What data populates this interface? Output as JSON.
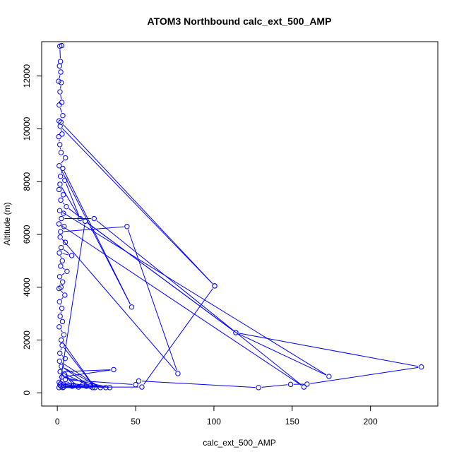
{
  "chart_data": {
    "type": "line",
    "title": "ATOM3 Northbound calc_ext_500_AMP",
    "xlabel": "calc_ext_500_AMP",
    "ylabel": "Altitude (m)",
    "xlim": [
      -10,
      243
    ],
    "ylim": [
      -500,
      13300
    ],
    "x_ticks": [
      0,
      50,
      100,
      150,
      200
    ],
    "x_tick_labels": [
      "0",
      "50",
      "100",
      "150",
      "200"
    ],
    "y_ticks": [
      0,
      2000,
      4000,
      6000,
      8000,
      10000,
      12000
    ],
    "y_tick_labels": [
      "0",
      "2000",
      "4000",
      "6000",
      "8000",
      "10000",
      "12000"
    ],
    "grid": false,
    "series_color": "#0000ff",
    "series": [
      {
        "points": [
          [
            2.8,
            13150
          ],
          [
            1.6,
            13130
          ],
          [
            2.0,
            12550
          ],
          [
            1.4,
            12380
          ],
          [
            2.2,
            12150
          ],
          [
            0.8,
            11800
          ],
          [
            2.5,
            11750
          ],
          [
            1.7,
            11400
          ],
          [
            2.9,
            11000
          ],
          [
            1.2,
            10900
          ],
          [
            3.5,
            10500
          ],
          [
            1.1,
            10300
          ],
          [
            2.3,
            10250
          ],
          [
            100.5,
            4050
          ],
          [
            1.8,
            10100
          ],
          [
            3.0,
            9800
          ],
          [
            0.9,
            9700
          ],
          [
            1.6,
            9400
          ],
          [
            2.4,
            9100
          ],
          [
            5.2,
            8900
          ],
          [
            1.2,
            8600
          ],
          [
            47.5,
            3250
          ],
          [
            3.5,
            8500
          ],
          [
            2.0,
            8200
          ],
          [
            4.8,
            8050
          ],
          [
            14.5,
            6600
          ],
          [
            1.7,
            7900
          ],
          [
            1.1,
            7700
          ],
          [
            3.8,
            7500
          ],
          [
            2.2,
            7300
          ],
          [
            5.8,
            7050
          ],
          [
            17.8,
            6500
          ],
          [
            114.0,
            2280
          ],
          [
            173.5,
            620
          ],
          [
            1.5,
            6900
          ],
          [
            3.9,
            6800
          ],
          [
            2.6,
            6600
          ],
          [
            23.5,
            6600
          ],
          [
            157.5,
            220
          ],
          [
            1.0,
            6400
          ],
          [
            4.3,
            6300
          ],
          [
            2.1,
            6100
          ],
          [
            44.5,
            6300
          ],
          [
            77.0,
            730
          ],
          [
            1.8,
            5900
          ],
          [
            5.1,
            5700
          ],
          [
            2.4,
            5500
          ],
          [
            9.2,
            5200
          ],
          [
            1.3,
            5300
          ],
          [
            3.2,
            5000
          ],
          [
            2.1,
            4800
          ],
          [
            6.2,
            4600
          ],
          [
            1.5,
            4400
          ],
          [
            3.4,
            4200
          ],
          [
            2.3,
            4000
          ],
          [
            1.1,
            3950
          ],
          [
            4.8,
            3700
          ],
          [
            1.4,
            3450
          ],
          [
            2.9,
            3200
          ],
          [
            1.8,
            2900
          ],
          [
            3.3,
            2700
          ],
          [
            1.2,
            2500
          ],
          [
            4.2,
            2200
          ],
          [
            2.5,
            2000
          ],
          [
            24.0,
            200
          ],
          [
            3.1,
            1800
          ],
          [
            1.6,
            1500
          ],
          [
            5.0,
            1300
          ],
          [
            1.4,
            1200
          ],
          [
            27.5,
            200
          ],
          [
            2.6,
            1000
          ],
          [
            21.0,
            250
          ],
          [
            1.8,
            800
          ],
          [
            36.0,
            880
          ],
          [
            2.9,
            600
          ],
          [
            33.5,
            200
          ],
          [
            1.2,
            400
          ],
          [
            31.0,
            200
          ],
          [
            4.0,
            300
          ],
          [
            18.5,
            250
          ],
          [
            2.4,
            250
          ],
          [
            22.5,
            200
          ],
          [
            3.5,
            200
          ],
          [
            16.0,
            300
          ],
          [
            1.1,
            200
          ],
          [
            13.5,
            220
          ],
          [
            4.6,
            700
          ],
          [
            10.5,
            280
          ],
          [
            2.2,
            350
          ],
          [
            9.5,
            250
          ],
          [
            5.1,
            500
          ],
          [
            50.0,
            310
          ],
          [
            52.0,
            450
          ],
          [
            128.5,
            200
          ],
          [
            149.0,
            320
          ],
          [
            159.5,
            330
          ],
          [
            232.5,
            980
          ],
          [
            114.0,
            2280
          ],
          [
            17.8,
            6500
          ],
          [
            1.6,
            300
          ],
          [
            4.0,
            220
          ],
          [
            54.0,
            220
          ],
          [
            100.5,
            4050
          ]
        ]
      }
    ]
  }
}
